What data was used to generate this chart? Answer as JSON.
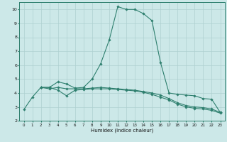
{
  "xlabel": "Humidex (Indice chaleur)",
  "bg_color": "#cce8e8",
  "line_color": "#2e7f6e",
  "grid_color": "#aed0d0",
  "xlim": [
    -0.5,
    23.5
  ],
  "ylim": [
    2,
    10.5
  ],
  "xticks": [
    0,
    1,
    2,
    3,
    4,
    5,
    6,
    7,
    8,
    9,
    10,
    11,
    12,
    13,
    14,
    15,
    16,
    17,
    18,
    19,
    20,
    21,
    22,
    23
  ],
  "yticks": [
    2,
    3,
    4,
    5,
    6,
    7,
    8,
    9,
    10
  ],
  "series": [
    {
      "x": [
        0,
        1,
        2,
        3,
        4,
        5,
        6,
        7,
        8,
        9,
        10,
        11,
        12,
        13,
        14,
        15,
        16,
        17,
        18,
        19,
        20,
        21,
        22,
        23
      ],
      "y": [
        2.8,
        3.7,
        4.4,
        4.3,
        4.4,
        4.3,
        4.3,
        4.3,
        4.35,
        4.4,
        4.35,
        4.3,
        4.25,
        4.2,
        4.1,
        4.0,
        3.85,
        3.6,
        3.3,
        3.1,
        3.0,
        2.95,
        2.85,
        2.6
      ]
    },
    {
      "x": [
        2,
        3,
        4,
        5,
        6,
        7,
        8,
        9,
        10,
        11,
        12,
        13,
        14,
        15,
        16,
        17,
        18,
        19,
        20,
        21,
        22,
        23
      ],
      "y": [
        4.4,
        4.4,
        4.8,
        4.65,
        4.35,
        4.4,
        5.0,
        6.1,
        7.8,
        10.2,
        10.0,
        10.0,
        9.7,
        9.2,
        6.2,
        4.0,
        3.9,
        3.85,
        3.8,
        3.6,
        3.55,
        2.6
      ]
    },
    {
      "x": [
        2,
        3,
        4,
        5,
        6,
        7,
        8,
        9,
        10,
        11,
        12,
        13,
        14,
        15,
        16,
        17,
        18,
        19,
        20,
        21,
        22,
        23
      ],
      "y": [
        4.4,
        4.4,
        4.2,
        3.8,
        4.2,
        4.25,
        4.3,
        4.3,
        4.3,
        4.25,
        4.2,
        4.15,
        4.05,
        3.9,
        3.7,
        3.5,
        3.2,
        3.0,
        2.9,
        2.85,
        2.75,
        2.55
      ]
    }
  ]
}
